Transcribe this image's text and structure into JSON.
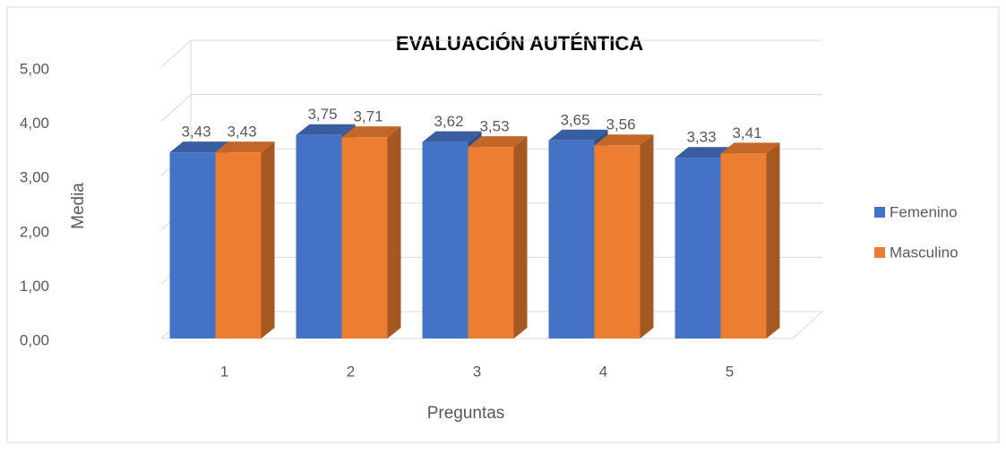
{
  "chart_data": {
    "type": "bar3d",
    "title": "EVALUACIÓN AUTÉNTICA",
    "xlabel": "Preguntas",
    "ylabel": "Media",
    "categories": [
      "1",
      "2",
      "3",
      "4",
      "5"
    ],
    "series": [
      {
        "name": "Femenino",
        "color": "#4472c4",
        "values": [
          3.43,
          3.75,
          3.62,
          3.65,
          3.33
        ],
        "value_labels": [
          "3,43",
          "3,75",
          "3,62",
          "3,65",
          "3,33"
        ]
      },
      {
        "name": "Masculino",
        "color": "#ed7d31",
        "values": [
          3.43,
          3.71,
          3.53,
          3.56,
          3.41
        ],
        "value_labels": [
          "3,43",
          "3,71",
          "3,53",
          "3,56",
          "3,41"
        ]
      }
    ],
    "ylim": [
      0,
      5
    ],
    "yticks": [
      {
        "value": 0,
        "label": "0,00"
      },
      {
        "value": 1,
        "label": "1,00"
      },
      {
        "value": 2,
        "label": "2,00"
      },
      {
        "value": 3,
        "label": "3,00"
      },
      {
        "value": 4,
        "label": "4,00"
      },
      {
        "value": 5,
        "label": "5,00"
      }
    ],
    "grid": true,
    "legend": "right"
  }
}
